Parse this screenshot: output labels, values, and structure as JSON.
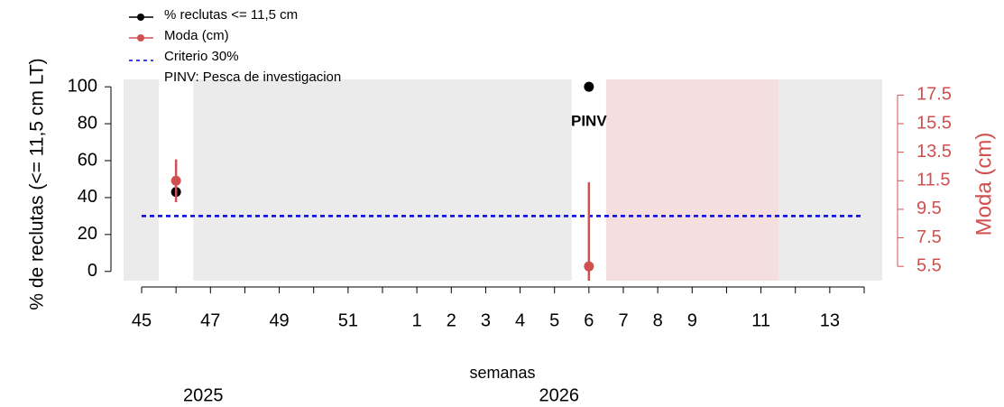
{
  "chart_data": {
    "type": "dual-axis-point",
    "y_label": "% de reclutas (<= 11,5 cm LT)",
    "y2_label": "Moda (cm)",
    "x_label": "semanas",
    "year_labels": [
      "2025",
      "2026"
    ],
    "categories": [
      "45",
      null,
      "47",
      null,
      "49",
      null,
      "51",
      null,
      "1",
      "2",
      "3",
      "4",
      "5",
      "6",
      "7",
      "8",
      "9",
      null,
      "11",
      null,
      "13",
      null
    ],
    "series": [
      {
        "name": "% reclutas <= 11,5 cm",
        "color": "#000000",
        "axis": "y",
        "values": [
          null,
          43,
          null,
          null,
          null,
          null,
          null,
          null,
          null,
          null,
          null,
          null,
          null,
          100,
          null,
          null,
          null,
          null,
          null,
          null,
          null,
          null
        ]
      },
      {
        "name": "Moda (cm)",
        "color": "#d05050",
        "axis": "y2",
        "values": [
          null,
          11.5,
          null,
          null,
          null,
          null,
          null,
          null,
          null,
          null,
          null,
          null,
          null,
          5.5,
          null,
          null,
          null,
          null,
          null,
          null,
          null,
          null
        ],
        "error_low": [
          null,
          10,
          null,
          null,
          null,
          null,
          null,
          null,
          null,
          null,
          null,
          null,
          null,
          4.5,
          null,
          null,
          null,
          null,
          null,
          null,
          null,
          null
        ],
        "error_high": [
          null,
          13,
          null,
          null,
          null,
          null,
          null,
          null,
          null,
          null,
          null,
          null,
          null,
          11.4,
          null,
          null,
          null,
          null,
          null,
          null,
          null,
          null
        ]
      }
    ],
    "reference_line": {
      "name": "Criterio 30%",
      "value": 30,
      "color": "#0000ee"
    },
    "legend_note": "PINV: Pesca de investigacion",
    "annotations": [
      {
        "text": "PINV",
        "x": "6",
        "y": 80
      }
    ],
    "shaded_range": {
      "from": "7",
      "to": "11",
      "color": "#f5dede"
    },
    "ylim": [
      -5,
      104
    ],
    "yticks": [
      0,
      20,
      40,
      60,
      80,
      100
    ],
    "y2lim": [
      4.5,
      18.6
    ],
    "y2ticks": [
      5.5,
      7.5,
      9.5,
      11.5,
      13.5,
      15.5,
      17.5
    ]
  }
}
